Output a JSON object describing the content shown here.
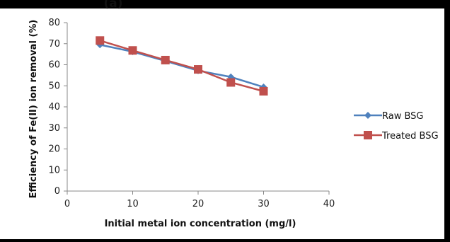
{
  "top_label": "(a)",
  "chart_data": {
    "type": "line",
    "title": "",
    "xlabel": "Initial metal ion concentration (mg/l)",
    "ylabel": "Efficiency of Fe(II) ion removal (%)",
    "xlim": [
      0,
      40
    ],
    "ylim": [
      0,
      80
    ],
    "x_ticks": [
      0,
      10,
      20,
      30,
      40
    ],
    "y_ticks": [
      0,
      10,
      20,
      30,
      40,
      50,
      60,
      70,
      80
    ],
    "grid": false,
    "legend_position": "right",
    "series": [
      {
        "name": "Raw BSG",
        "color": "#4F81BD",
        "marker": "diamond",
        "x": [
          5,
          10,
          15,
          20,
          25,
          30
        ],
        "y": [
          69.5,
          66.2,
          61.8,
          57.2,
          54.2,
          49.4
        ]
      },
      {
        "name": "Treated BSG",
        "color": "#C0504D",
        "marker": "square",
        "x": [
          5,
          10,
          15,
          20,
          25,
          30
        ],
        "y": [
          71.5,
          66.8,
          62.2,
          57.8,
          51.6,
          47.4
        ]
      }
    ]
  }
}
